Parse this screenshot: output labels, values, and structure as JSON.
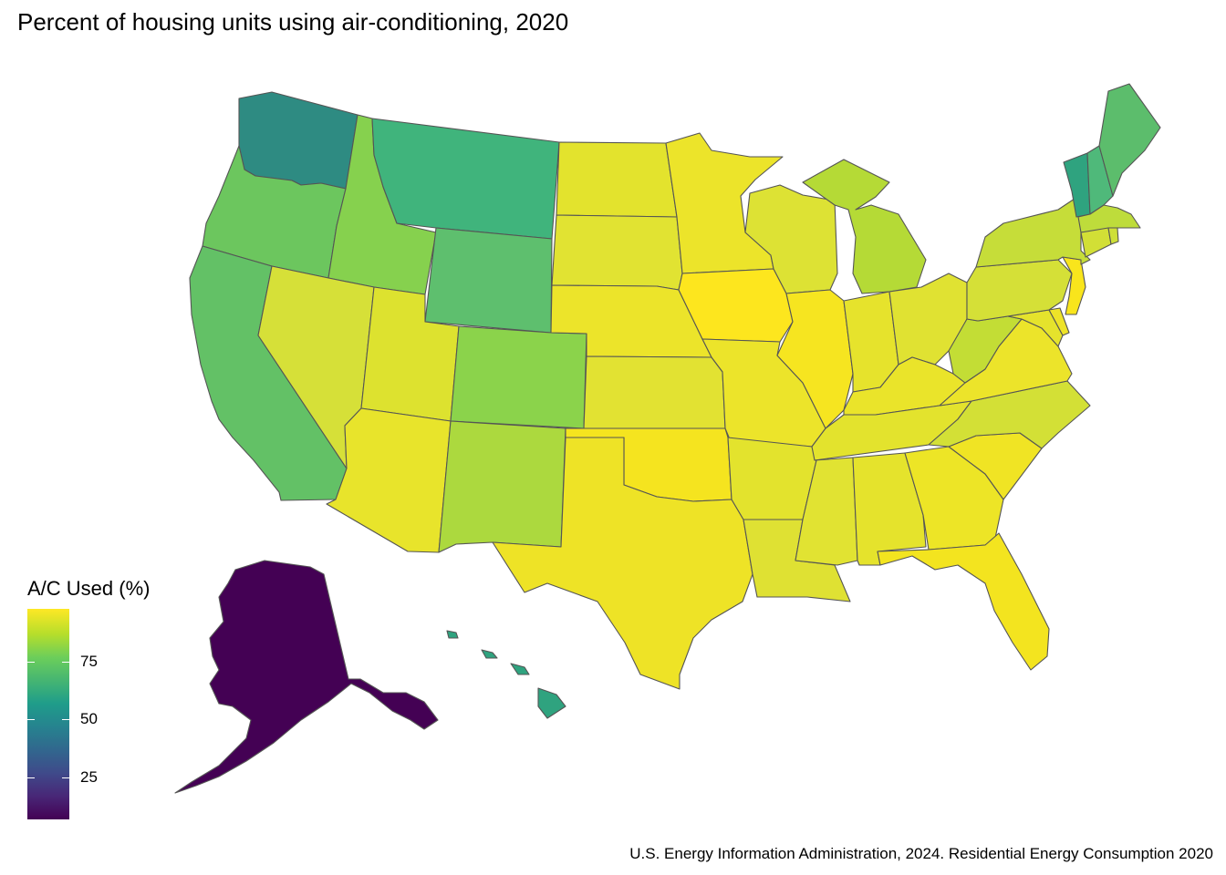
{
  "title": "Percent of housing units using air-conditioning, 2020",
  "caption": "U.S. Energy Information Administration, 2024. Residential Energy Consumption 2020",
  "legend": {
    "title": "A/C Used (%)",
    "ticks": [
      "75",
      "50",
      "25"
    ],
    "colors": [
      "#440154",
      "#3f4a8a",
      "#26838f",
      "#1f9d8a",
      "#6cce5a",
      "#b6de2b",
      "#fee825"
    ]
  },
  "map_data": {
    "type": "choropleth",
    "region": "United States",
    "scale": "viridis",
    "fills": {
      "WA": "#2e8b82",
      "OR": "#6cc65e",
      "CA": "#63c166",
      "ID": "#86d14e",
      "NV": "#d6e038",
      "MT": "#40b47c",
      "WY": "#5ebf6e",
      "UT": "#dde22f",
      "AZ": "#e8e42b",
      "CO": "#8bd34b",
      "NM": "#acd93e",
      "ND": "#e3e32d",
      "SD": "#e1e332",
      "NE": "#ece42a",
      "KS": "#e2e232",
      "OK": "#f5e41f",
      "TX": "#eee326",
      "MN": "#ece42a",
      "IA": "#fde61e",
      "MO": "#ece42a",
      "AR": "#e3e32d",
      "LA": "#dfe133",
      "WI": "#dde234",
      "IL": "#f6e520",
      "MI": "#b5da36",
      "IN": "#e6e32c",
      "OH": "#e0e232",
      "KY": "#eae42a",
      "TN": "#e3e32d",
      "MS": "#e1e332",
      "AL": "#e5e32c",
      "GA": "#ede526",
      "FL": "#f3e41f",
      "SC": "#f0e424",
      "NC": "#d3e036",
      "VA": "#ece42a",
      "WV": "#c3dd35",
      "PA": "#d5e037",
      "NY": "#c6dd39",
      "NJ": "#f9e51c",
      "DE": "#eee328",
      "MD": "#e5e32c",
      "CT": "#d2df36",
      "RI": "#cedf38",
      "MA": "#bedc3b",
      "VT": "#2fa37f",
      "NH": "#4fb97a",
      "ME": "#5cbd6c",
      "AK": "#440154",
      "HI": "#2fa37f"
    }
  }
}
